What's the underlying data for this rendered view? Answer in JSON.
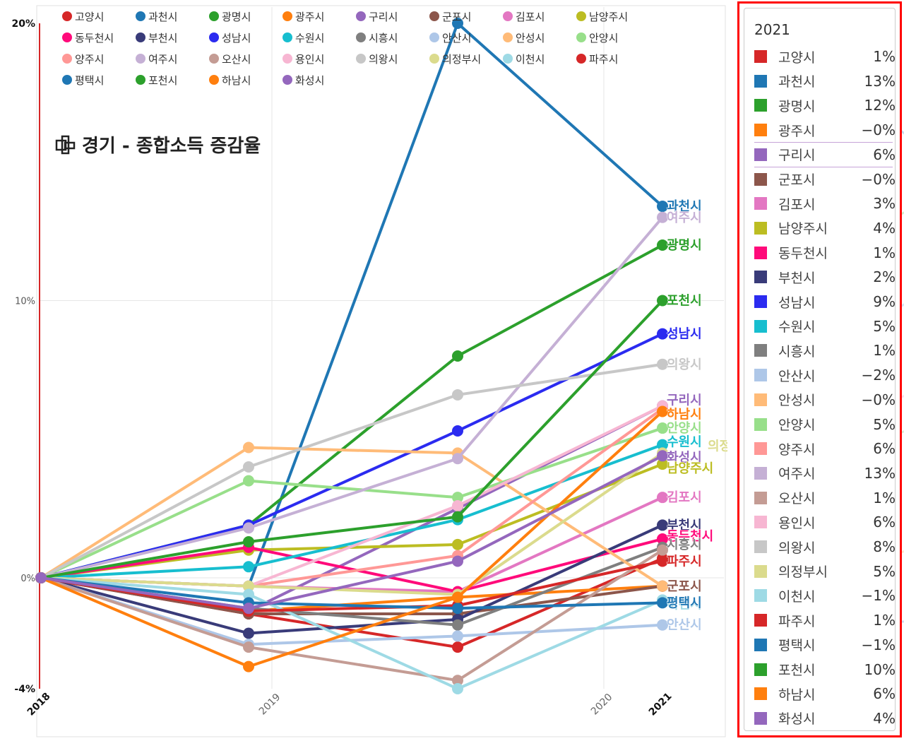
{
  "chart_data": {
    "type": "line",
    "title": "경기 - 종합소득 증감율",
    "x": [
      "2018",
      "2019",
      "2020",
      "2021"
    ],
    "x_positions": [
      2018,
      2019,
      2020,
      2021
    ],
    "ylim": [
      -4,
      20
    ],
    "y_ticks": [
      {
        "value": 20,
        "label": "20%"
      },
      {
        "value": 10,
        "label": "10%"
      },
      {
        "value": 0,
        "label": "0%"
      },
      {
        "value": -4,
        "label": "-4%"
      }
    ],
    "series": [
      {
        "name": "고양시",
        "color": "#d62728",
        "values": [
          0,
          -1.3,
          -2.5,
          0.7
        ],
        "dots": [
          0,
          1.55,
          3.1,
          4.07
        ]
      },
      {
        "name": "과천시",
        "color": "#1f77b4",
        "values": [
          0,
          -0.3,
          20,
          13.4
        ],
        "dots": [
          0,
          1.55,
          3.1,
          4.07
        ]
      },
      {
        "name": "광명시",
        "color": "#2ca02c",
        "values": [
          0,
          1.9,
          8,
          12
        ],
        "dots": [
          0,
          1.55,
          3.1,
          4.07
        ]
      },
      {
        "name": "광주시",
        "color": "#ff7f0e",
        "values": [
          0,
          -1.2,
          -0.7,
          -0.3
        ],
        "dots": [
          0,
          1.55,
          3.1,
          4.07
        ]
      },
      {
        "name": "구리시",
        "color": "#9467bd",
        "values": [
          0,
          -1.2,
          2.5,
          6.2
        ],
        "dots": [
          0,
          1.55,
          3.1,
          4.07
        ]
      },
      {
        "name": "군포시",
        "color": "#8c564b",
        "values": [
          0,
          -1.3,
          -1.3,
          -0.3
        ],
        "dots": [
          0,
          1.55,
          3.1,
          4.07
        ]
      },
      {
        "name": "김포시",
        "color": "#e377c2",
        "values": [
          0,
          -0.3,
          -0.5,
          2.9
        ],
        "dots": [
          0,
          1.55,
          3.1,
          4.07
        ]
      },
      {
        "name": "남양주시",
        "color": "#bcbd22",
        "values": [
          0,
          1,
          1.2,
          4.1
        ],
        "dots": [
          0,
          1.55,
          3.1,
          4.07
        ]
      },
      {
        "name": "동두천시",
        "color": "#ff0a7a",
        "values": [
          0,
          1.1,
          -0.5,
          1.4
        ],
        "dots": [
          0,
          1.55,
          3.1,
          4.07
        ]
      },
      {
        "name": "부천시",
        "color": "#393b79",
        "values": [
          0,
          -2,
          -1.5,
          1.9
        ],
        "dots": [
          0,
          1.55,
          3.1,
          4.07
        ]
      },
      {
        "name": "성남시",
        "color": "#2b2bf0",
        "values": [
          0,
          1.9,
          5.3,
          8.8
        ],
        "dots": [
          0,
          1.55,
          3.1,
          4.07
        ]
      },
      {
        "name": "수원시",
        "color": "#17becf",
        "values": [
          0,
          0.4,
          2.1,
          4.8
        ],
        "dots": [
          0,
          1.55,
          3.1,
          4.07
        ]
      },
      {
        "name": "시흥시",
        "color": "#7f7f7f",
        "values": [
          0,
          -1.1,
          -1.7,
          1.1
        ],
        "dots": [
          0,
          1.55,
          3.1,
          4.07
        ]
      },
      {
        "name": "안산시",
        "color": "#aec7e8",
        "values": [
          0,
          -2.4,
          -2.1,
          -1.7
        ],
        "dots": [
          0,
          1.55,
          3.1,
          4.07
        ]
      },
      {
        "name": "안성시",
        "color": "#ffbb78",
        "values": [
          0,
          4.7,
          4.5,
          -0.3
        ],
        "dots": [
          0,
          1.55,
          3.1,
          4.07
        ]
      },
      {
        "name": "안양시",
        "color": "#98df8a",
        "values": [
          0,
          3.5,
          2.9,
          5.4
        ],
        "dots": [
          0,
          1.55,
          3.1,
          4.07
        ]
      },
      {
        "name": "양주시",
        "color": "#ff9896",
        "values": [
          0,
          -0.3,
          0.8,
          6.1
        ],
        "dots": [
          0,
          1.55,
          3.1,
          4.07
        ]
      },
      {
        "name": "여주시",
        "color": "#c5b0d5",
        "values": [
          0,
          1.8,
          4.3,
          13
        ],
        "dots": [
          0,
          1.55,
          3.1,
          4.07
        ]
      },
      {
        "name": "오산시",
        "color": "#c49c94",
        "values": [
          0,
          -2.5,
          -3.7,
          1
        ],
        "dots": [
          0,
          1.55,
          3.1,
          4.07
        ]
      },
      {
        "name": "용인시",
        "color": "#f7b6d2",
        "values": [
          0,
          -0.3,
          2.6,
          6.2
        ],
        "dots": [
          0,
          1.55,
          3.1,
          4.07
        ]
      },
      {
        "name": "의왕시",
        "color": "#c7c7c7",
        "values": [
          0,
          4,
          6.6,
          7.7
        ],
        "dots": [
          0,
          1.55,
          3.1,
          4.07
        ]
      },
      {
        "name": "의정부시",
        "color": "#dbdb8d",
        "values": [
          0,
          -0.3,
          -0.6,
          4.5
        ],
        "dots": [
          0,
          1.55,
          3.1,
          4.07
        ]
      },
      {
        "name": "이천시",
        "color": "#9edae5",
        "values": [
          0,
          -0.6,
          -4,
          -0.8
        ],
        "dots": [
          0,
          1.55,
          3.1,
          4.07
        ]
      },
      {
        "name": "파주시",
        "color": "#d62728",
        "values": [
          0,
          -1.2,
          -1,
          0.6
        ],
        "dots": [
          0,
          1.55,
          3.1,
          4.07
        ]
      },
      {
        "name": "평택시",
        "color": "#1f77b4",
        "values": [
          0,
          -0.9,
          -1.1,
          -0.9
        ],
        "dots": [
          0,
          1.55,
          3.1,
          4.07
        ]
      },
      {
        "name": "포천시",
        "color": "#2ca02c",
        "values": [
          0,
          1.3,
          2.2,
          10
        ],
        "dots": [
          0,
          1.55,
          3.1,
          4.07
        ]
      },
      {
        "name": "하남시",
        "color": "#ff7f0e",
        "values": [
          0,
          -3.2,
          -0.7,
          6
        ],
        "dots": [
          0,
          1.55,
          3.1,
          4.07
        ]
      },
      {
        "name": "화성시",
        "color": "#9467bd",
        "values": [
          0,
          -1.1,
          0.6,
          4.4
        ],
        "dots": [
          0,
          1.55,
          3.1,
          4.07
        ]
      }
    ],
    "end_labels": [
      "과천시",
      "여주시",
      "광명시",
      "포천시",
      "성남시",
      "의왕시",
      "구리시",
      "하남시",
      "안양시",
      "수원시",
      "의정부시",
      "화성시",
      "남양주시",
      "김포시",
      "부천시",
      "동두천시",
      "시흥시",
      "파주시",
      "군포시",
      "이천시",
      "평택시",
      "안산시"
    ],
    "grid": true,
    "legend": "top"
  },
  "tooltip": {
    "year": "2021",
    "rows": [
      {
        "name": "고양시",
        "value": "1%",
        "color": "#d62728"
      },
      {
        "name": "과천시",
        "value": "13%",
        "color": "#1f77b4"
      },
      {
        "name": "광명시",
        "value": "12%",
        "color": "#2ca02c"
      },
      {
        "name": "광주시",
        "value": "−0%",
        "color": "#ff7f0e"
      },
      {
        "name": "구리시",
        "value": "6%",
        "color": "#9467bd"
      },
      {
        "name": "군포시",
        "value": "−0%",
        "color": "#8c564b"
      },
      {
        "name": "김포시",
        "value": "3%",
        "color": "#e377c2"
      },
      {
        "name": "남양주시",
        "value": "4%",
        "color": "#bcbd22"
      },
      {
        "name": "동두천시",
        "value": "1%",
        "color": "#ff0a7a"
      },
      {
        "name": "부천시",
        "value": "2%",
        "color": "#393b79"
      },
      {
        "name": "성남시",
        "value": "9%",
        "color": "#2b2bf0"
      },
      {
        "name": "수원시",
        "value": "5%",
        "color": "#17becf"
      },
      {
        "name": "시흥시",
        "value": "1%",
        "color": "#7f7f7f"
      },
      {
        "name": "안산시",
        "value": "−2%",
        "color": "#aec7e8"
      },
      {
        "name": "안성시",
        "value": "−0%",
        "color": "#ffbb78"
      },
      {
        "name": "안양시",
        "value": "5%",
        "color": "#98df8a"
      },
      {
        "name": "양주시",
        "value": "6%",
        "color": "#ff9896"
      },
      {
        "name": "여주시",
        "value": "13%",
        "color": "#c5b0d5"
      },
      {
        "name": "오산시",
        "value": "1%",
        "color": "#c49c94"
      },
      {
        "name": "용인시",
        "value": "6%",
        "color": "#f7b6d2"
      },
      {
        "name": "의왕시",
        "value": "8%",
        "color": "#c7c7c7"
      },
      {
        "name": "의정부시",
        "value": "5%",
        "color": "#dbdb8d"
      },
      {
        "name": "이천시",
        "value": "−1%",
        "color": "#9edae5"
      },
      {
        "name": "파주시",
        "value": "1%",
        "color": "#d62728"
      },
      {
        "name": "평택시",
        "value": "−1%",
        "color": "#1f77b4"
      },
      {
        "name": "포천시",
        "value": "10%",
        "color": "#2ca02c"
      },
      {
        "name": "하남시",
        "value": "6%",
        "color": "#ff7f0e"
      },
      {
        "name": "화성시",
        "value": "4%",
        "color": "#9467bd"
      }
    ]
  }
}
